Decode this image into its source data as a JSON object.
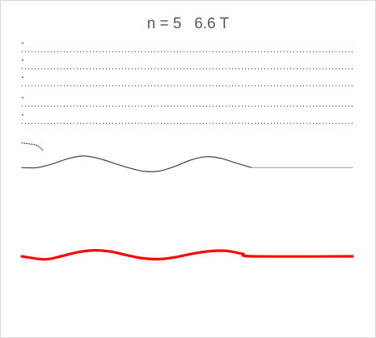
{
  "chart_data": {
    "type": "line",
    "title": "n = 5   6.6 T",
    "xlabel": "",
    "ylabel": "",
    "legend": "none",
    "axes_visible": false,
    "xlim": [
      0,
      1
    ],
    "colors": {
      "guide_lines": "#404040",
      "wave_black": "#404040",
      "wave_gray": "#a6a6a6",
      "wave_red": "#ff0000"
    },
    "guide_levels": [
      0.78,
      0.88,
      1.0,
      1.1,
      1.2
    ],
    "guide_right_end": [
      1.0,
      1.0,
      1.0,
      1.0,
      1.0
    ],
    "series": [
      {
        "style": "thin-dark",
        "baseline": 0.52,
        "segments": [
          {
            "x": [
              0.0,
              0.046,
              0.093,
              0.139,
              0.185,
              0.232,
              0.278,
              0.325,
              0.371,
              0.417,
              0.464,
              0.51,
              0.556,
              0.603,
              0.649,
              0.695
            ],
            "y": [
              0.0,
              0.0,
              0.022,
              0.052,
              0.068,
              0.054,
              0.026,
              -0.002,
              -0.022,
              -0.02,
              0.008,
              0.044,
              0.064,
              0.054,
              0.026,
              0.0
            ]
          }
        ]
      },
      {
        "style": "thin-gray",
        "baseline": 0.52,
        "segments": [
          {
            "x": [
              0.695,
              1.0
            ],
            "y": [
              0.0,
              0.0
            ]
          }
        ]
      },
      {
        "style": "dotted-tail",
        "baseline": 0.52,
        "segments": [
          {
            "x": [
              0.0,
              0.02,
              0.045,
              0.065
            ],
            "y": [
              0.145,
              0.14,
              0.13,
              0.1
            ]
          }
        ]
      },
      {
        "style": "thick-red",
        "baseline": 0.0,
        "segments": [
          {
            "x": [
              0.0,
              0.068,
              0.118,
              0.168,
              0.218,
              0.268,
              0.318,
              0.368,
              0.418,
              0.468,
              0.518,
              0.568,
              0.618,
              0.668,
              0.7,
              1.0
            ],
            "y": [
              0.0,
              -0.018,
              0.0,
              0.024,
              0.035,
              0.028,
              0.006,
              -0.012,
              -0.016,
              -0.004,
              0.016,
              0.03,
              0.032,
              0.014,
              0.0,
              0.0
            ]
          }
        ]
      }
    ]
  }
}
